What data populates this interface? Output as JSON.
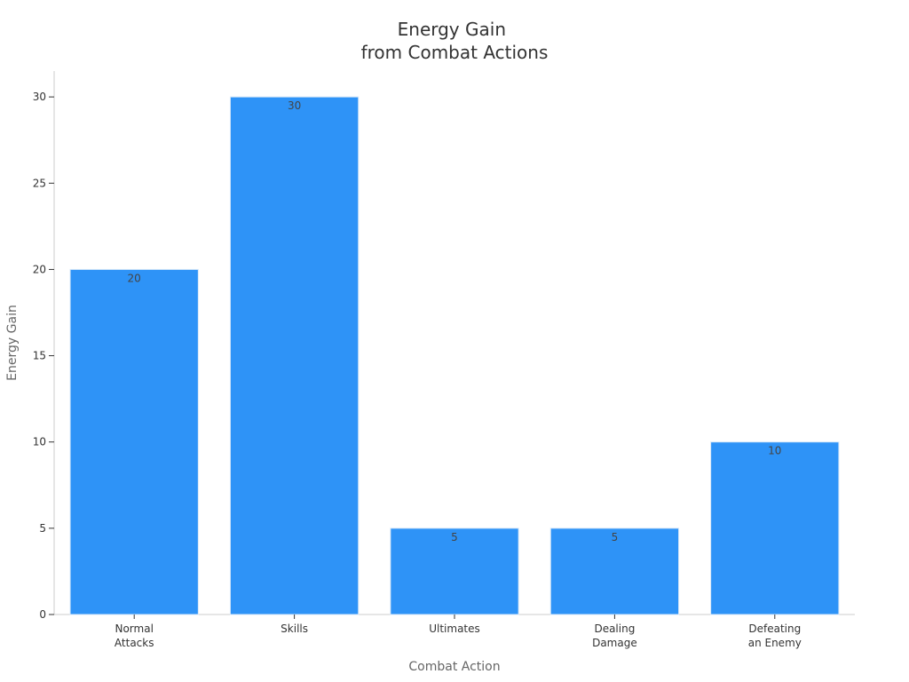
{
  "chart_data": {
    "type": "bar",
    "title": [
      "Energy Gain",
      "from Combat Actions"
    ],
    "xlabel": "Combat Action",
    "ylabel": "Energy Gain",
    "categories": [
      [
        "Normal",
        "Attacks"
      ],
      [
        "Skills"
      ],
      [
        "Ultimates"
      ],
      [
        "Dealing",
        "Damage"
      ],
      [
        "Defeating",
        "an Enemy"
      ]
    ],
    "values": [
      20,
      30,
      5,
      5,
      10
    ],
    "ylim": [
      0,
      31.5
    ],
    "yticks": [
      0,
      5,
      10,
      15,
      20,
      25,
      30
    ],
    "grid": false,
    "legend": "none",
    "bar_color": "#2e93f7"
  }
}
